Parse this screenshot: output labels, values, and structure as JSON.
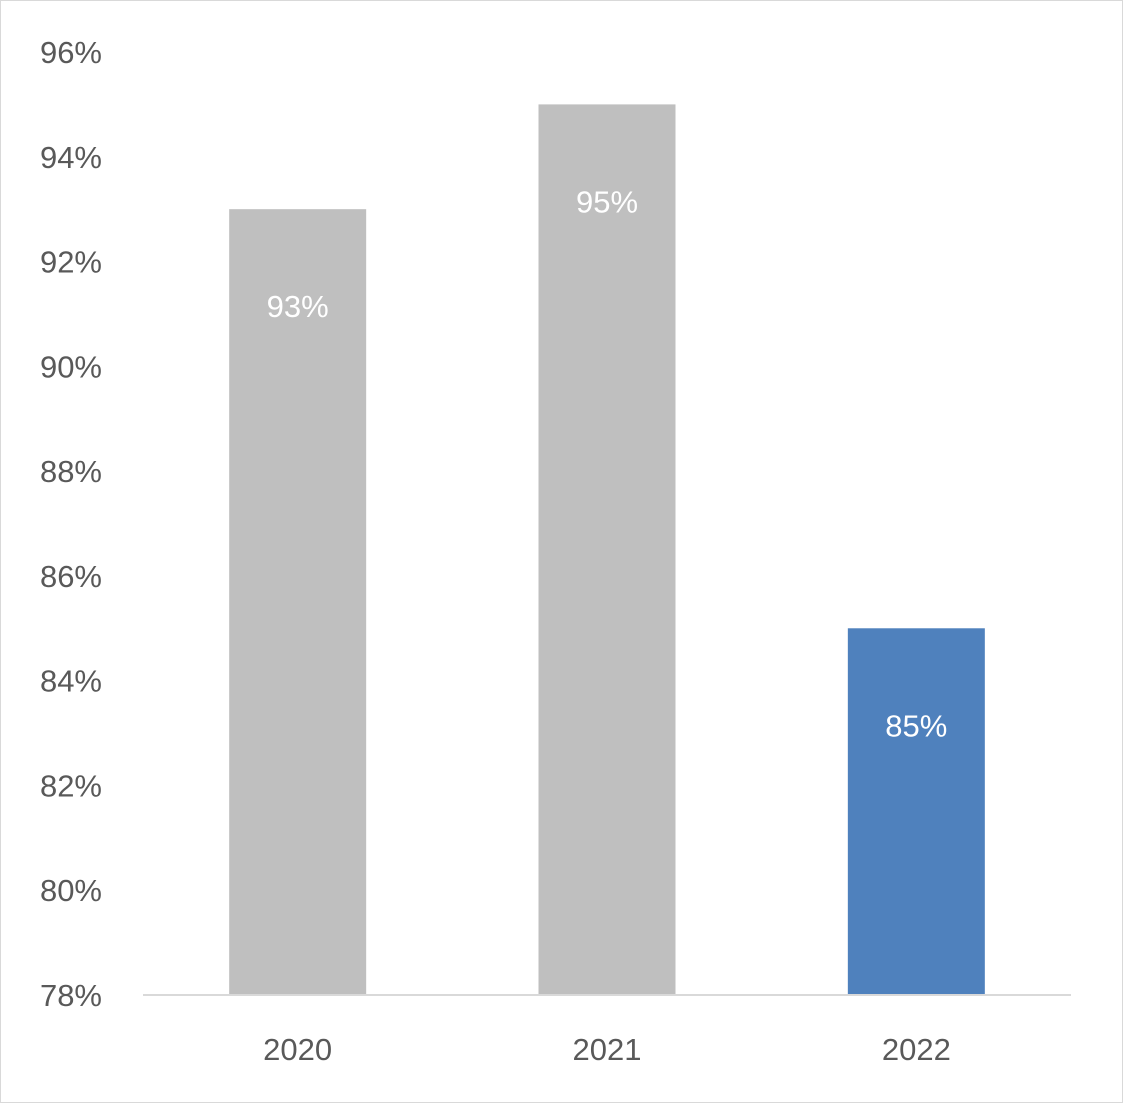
{
  "chart_data": {
    "type": "bar",
    "title": "",
    "xlabel": "",
    "ylabel": "",
    "categories": [
      "2020",
      "2021",
      "2022"
    ],
    "values": [
      0.93,
      0.95,
      0.85
    ],
    "data_labels": [
      "93%",
      "95%",
      "85%"
    ],
    "bar_colors": [
      "#bfbfbf",
      "#bfbfbf",
      "#4f81bd"
    ],
    "ylim": [
      0.78,
      0.96
    ],
    "y_ticks": [
      0.78,
      0.8,
      0.82,
      0.84,
      0.86,
      0.88,
      0.9,
      0.92,
      0.94,
      0.96
    ],
    "y_tick_labels": [
      "78%",
      "80%",
      "82%",
      "84%",
      "86%",
      "88%",
      "90%",
      "92%",
      "94%",
      "96%"
    ],
    "grid": false,
    "legend": "none",
    "axis_line_color": "#d9d9d9",
    "tick_label_color": "#595959",
    "data_label_color": "#ffffff"
  }
}
